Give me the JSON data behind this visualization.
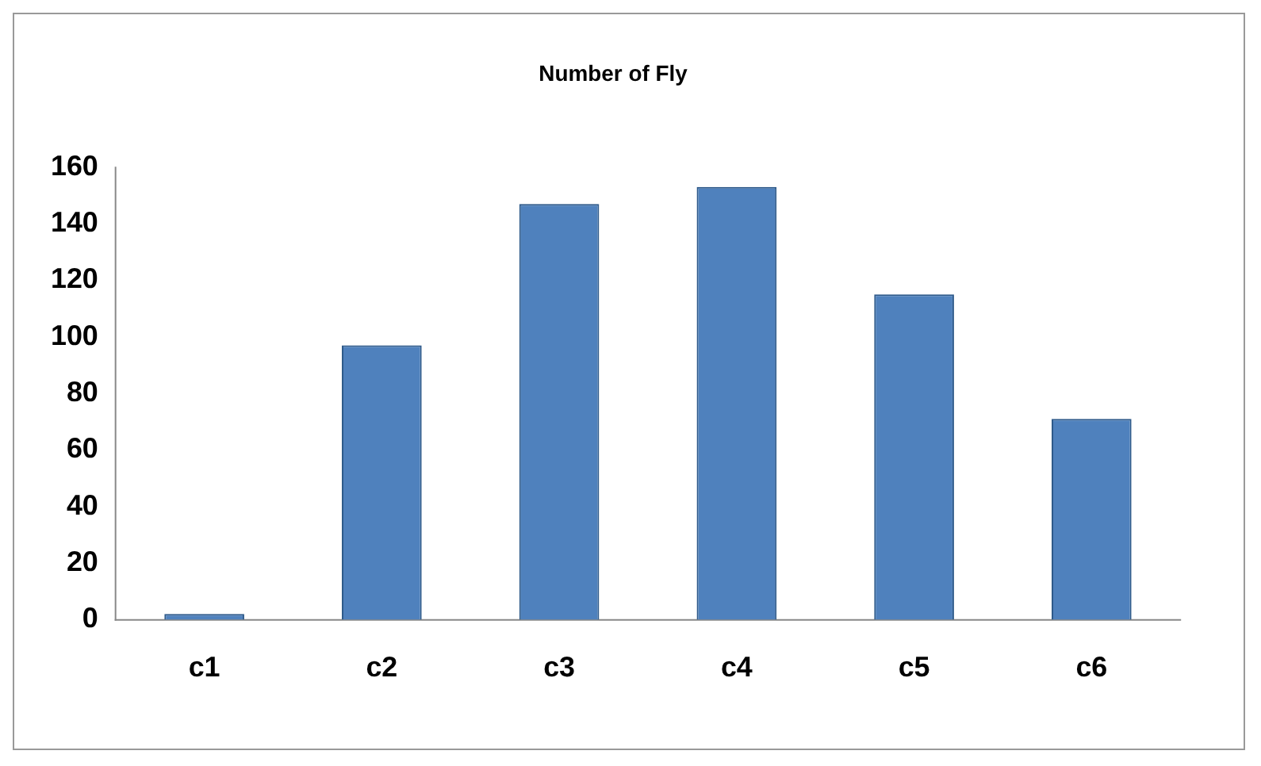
{
  "chart_data": {
    "type": "bar",
    "title": "Number of Fly",
    "categories": [
      "c1",
      "c2",
      "c3",
      "c4",
      "c5",
      "c6"
    ],
    "values": [
      2,
      97,
      147,
      153,
      115,
      71
    ],
    "color": "#4f81bd",
    "ylim": [
      0,
      160
    ],
    "yticks": [
      0,
      20,
      40,
      60,
      80,
      100,
      120,
      140,
      160
    ],
    "grid": false
  }
}
